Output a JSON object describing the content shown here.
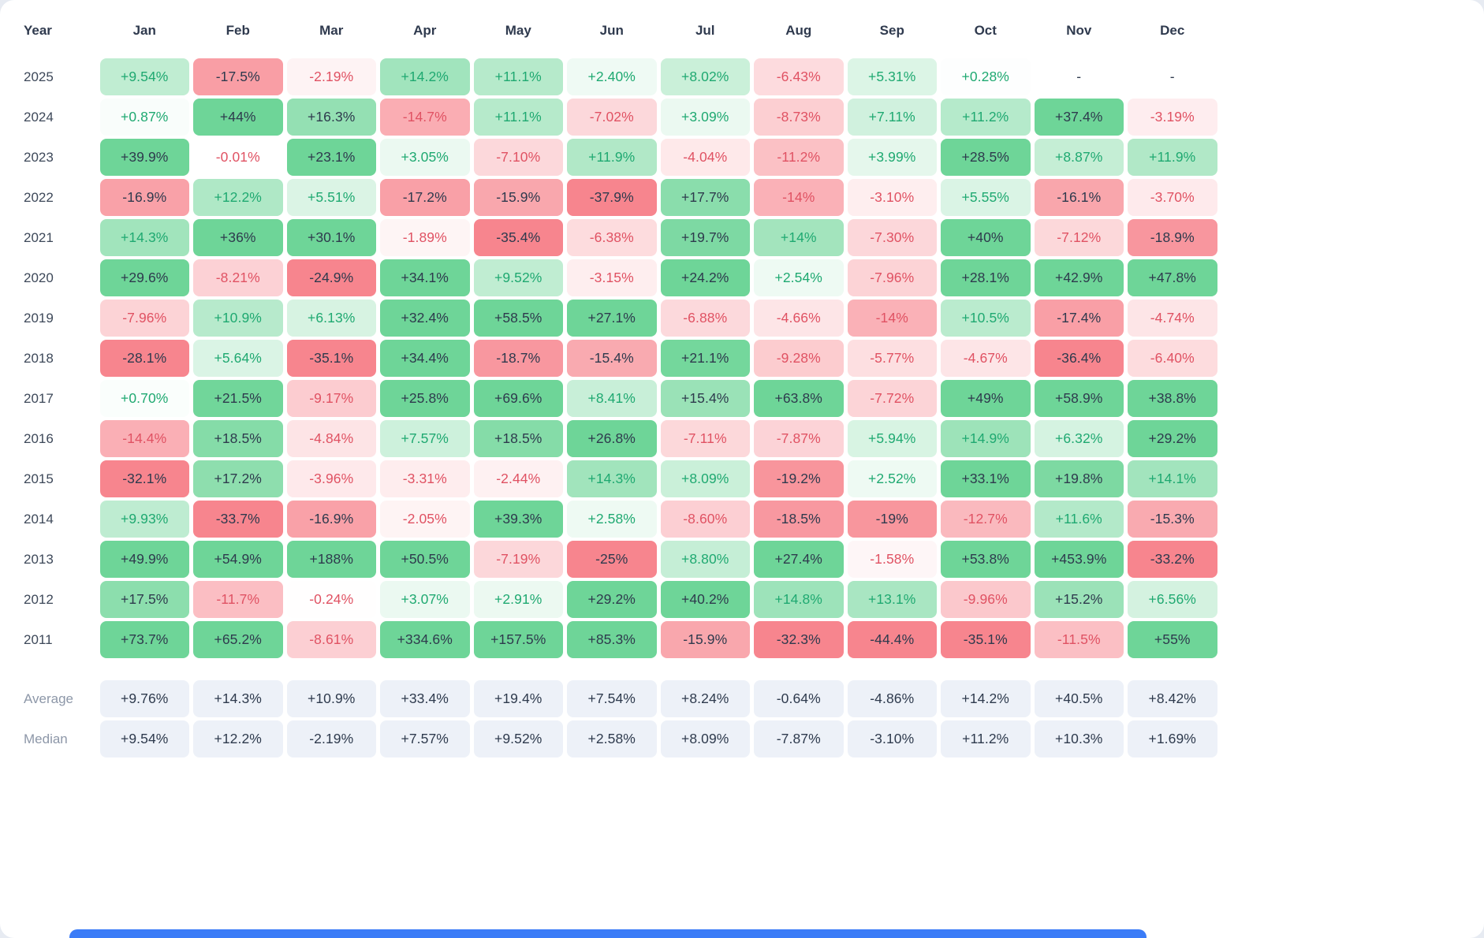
{
  "colors": {
    "positive_full": "#6ed598",
    "negative_full": "#f7858e",
    "text_dark": "#2e3a4d",
    "text_positive": "#1fa971",
    "text_negative": "#e05263",
    "summary_bg": "#edf1f8",
    "summary_text": "#2e3a4d",
    "bottom_bar": "#3b7cf7"
  },
  "chart_data": {
    "type": "heatmap",
    "unit": "%",
    "corner_label": "Year",
    "missing_marker": "-",
    "columns": [
      "Jan",
      "Feb",
      "Mar",
      "Apr",
      "May",
      "Jun",
      "Jul",
      "Aug",
      "Sep",
      "Oct",
      "Nov",
      "Dec"
    ],
    "rows": [
      {
        "year": "2025",
        "values": [
          "+9.54%",
          "-17.5%",
          "-2.19%",
          "+14.2%",
          "+11.1%",
          "+2.40%",
          "+8.02%",
          "-6.43%",
          "+5.31%",
          "+0.28%",
          "-",
          "-"
        ]
      },
      {
        "year": "2024",
        "values": [
          "+0.87%",
          "+44%",
          "+16.3%",
          "-14.7%",
          "+11.1%",
          "-7.02%",
          "+3.09%",
          "-8.73%",
          "+7.11%",
          "+11.2%",
          "+37.4%",
          "-3.19%"
        ]
      },
      {
        "year": "2023",
        "values": [
          "+39.9%",
          "-0.01%",
          "+23.1%",
          "+3.05%",
          "-7.10%",
          "+11.9%",
          "-4.04%",
          "-11.2%",
          "+3.99%",
          "+28.5%",
          "+8.87%",
          "+11.9%"
        ]
      },
      {
        "year": "2022",
        "values": [
          "-16.9%",
          "+12.2%",
          "+5.51%",
          "-17.2%",
          "-15.9%",
          "-37.9%",
          "+17.7%",
          "-14%",
          "-3.10%",
          "+5.55%",
          "-16.1%",
          "-3.70%"
        ]
      },
      {
        "year": "2021",
        "values": [
          "+14.3%",
          "+36%",
          "+30.1%",
          "-1.89%",
          "-35.4%",
          "-6.38%",
          "+19.7%",
          "+14%",
          "-7.30%",
          "+40%",
          "-7.12%",
          "-18.9%"
        ]
      },
      {
        "year": "2020",
        "values": [
          "+29.6%",
          "-8.21%",
          "-24.9%",
          "+34.1%",
          "+9.52%",
          "-3.15%",
          "+24.2%",
          "+2.54%",
          "-7.96%",
          "+28.1%",
          "+42.9%",
          "+47.8%"
        ]
      },
      {
        "year": "2019",
        "values": [
          "-7.96%",
          "+10.9%",
          "+6.13%",
          "+32.4%",
          "+58.5%",
          "+27.1%",
          "-6.88%",
          "-4.66%",
          "-14%",
          "+10.5%",
          "-17.4%",
          "-4.74%"
        ]
      },
      {
        "year": "2018",
        "values": [
          "-28.1%",
          "+5.64%",
          "-35.1%",
          "+34.4%",
          "-18.7%",
          "-15.4%",
          "+21.1%",
          "-9.28%",
          "-5.77%",
          "-4.67%",
          "-36.4%",
          "-6.40%"
        ]
      },
      {
        "year": "2017",
        "values": [
          "+0.70%",
          "+21.5%",
          "-9.17%",
          "+25.8%",
          "+69.6%",
          "+8.41%",
          "+15.4%",
          "+63.8%",
          "-7.72%",
          "+49%",
          "+58.9%",
          "+38.8%"
        ]
      },
      {
        "year": "2016",
        "values": [
          "-14.4%",
          "+18.5%",
          "-4.84%",
          "+7.57%",
          "+18.5%",
          "+26.8%",
          "-7.11%",
          "-7.87%",
          "+5.94%",
          "+14.9%",
          "+6.32%",
          "+29.2%"
        ]
      },
      {
        "year": "2015",
        "values": [
          "-32.1%",
          "+17.2%",
          "-3.96%",
          "-3.31%",
          "-2.44%",
          "+14.3%",
          "+8.09%",
          "-19.2%",
          "+2.52%",
          "+33.1%",
          "+19.8%",
          "+14.1%"
        ]
      },
      {
        "year": "2014",
        "values": [
          "+9.93%",
          "-33.7%",
          "-16.9%",
          "-2.05%",
          "+39.3%",
          "+2.58%",
          "-8.60%",
          "-18.5%",
          "-19%",
          "-12.7%",
          "+11.6%",
          "-15.3%"
        ]
      },
      {
        "year": "2013",
        "values": [
          "+49.9%",
          "+54.9%",
          "+188%",
          "+50.5%",
          "-7.19%",
          "-25%",
          "+8.80%",
          "+27.4%",
          "-1.58%",
          "+53.8%",
          "+453.9%",
          "-33.2%"
        ]
      },
      {
        "year": "2012",
        "values": [
          "+17.5%",
          "-11.7%",
          "-0.24%",
          "+3.07%",
          "+2.91%",
          "+29.2%",
          "+40.2%",
          "+14.8%",
          "+13.1%",
          "-9.96%",
          "+15.2%",
          "+6.56%"
        ]
      },
      {
        "year": "2011",
        "values": [
          "+73.7%",
          "+65.2%",
          "-8.61%",
          "+334.6%",
          "+157.5%",
          "+85.3%",
          "-15.9%",
          "-32.3%",
          "-44.4%",
          "-35.1%",
          "-11.5%",
          "+55%"
        ]
      }
    ],
    "summary": [
      {
        "label": "Average",
        "values": [
          "+9.76%",
          "+14.3%",
          "+10.9%",
          "+33.4%",
          "+19.4%",
          "+7.54%",
          "+8.24%",
          "-0.64%",
          "-4.86%",
          "+14.2%",
          "+40.5%",
          "+8.42%"
        ]
      },
      {
        "label": "Median",
        "values": [
          "+9.54%",
          "+12.2%",
          "-2.19%",
          "+7.57%",
          "+9.52%",
          "+2.58%",
          "+8.09%",
          "-7.87%",
          "-3.10%",
          "+11.2%",
          "+10.3%",
          "+1.69%"
        ]
      }
    ]
  }
}
